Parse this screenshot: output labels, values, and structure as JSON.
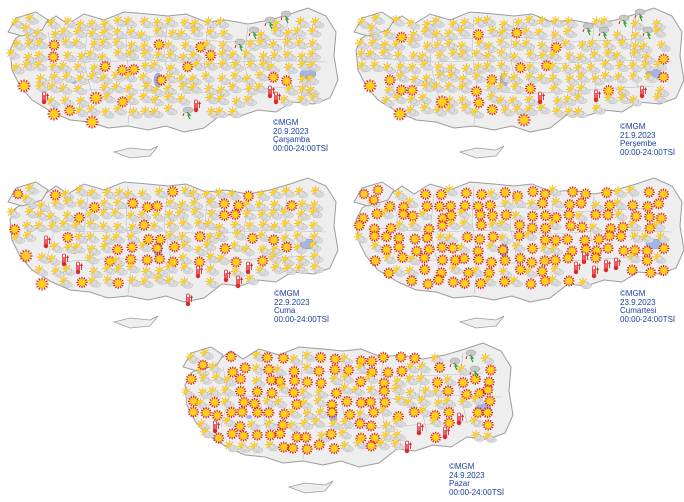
{
  "maps": [
    {
      "copyright": "©MGM",
      "date": "20.9.2023",
      "day": "Çarşamba",
      "period": "00:00-24:00TSİ"
    },
    {
      "copyright": "©MGM",
      "date": "21.9.2023",
      "day": "Perşembe",
      "period": "00:00-24:00TSİ"
    },
    {
      "copyright": "©MGM",
      "date": "22.9.2023",
      "day": "Cuma",
      "period": "00:00-24:00TSİ"
    },
    {
      "copyright": "©MGM",
      "date": "23.9.2023",
      "day": "Cumartesi",
      "period": "00:00-24:00TSİ"
    },
    {
      "copyright": "©MGM",
      "date": "24.9.2023",
      "day": "Pazar",
      "period": "00:00-24:00TSİ"
    }
  ],
  "colors": {
    "land": "#eeeeee",
    "border": "#9c9c9c",
    "lake": "#9fb6e8",
    "sun": "#ffd21a",
    "sun_ray": "#e41a1a",
    "cloud": "#dcdcdc",
    "thermometer": "#e0252b",
    "storm_green": "#2e9c2e",
    "caption_text": "#1b3fa0"
  },
  "icon_types": [
    "partly-cloudy-icon",
    "sunny-icon",
    "hot-thermometer-icon",
    "thunderstorm-icon"
  ]
}
